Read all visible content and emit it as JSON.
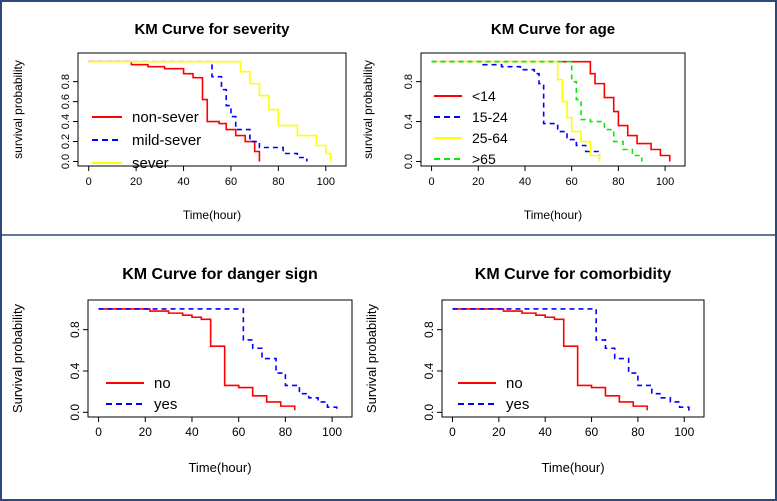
{
  "figure": {
    "colors": {
      "border": "#2b4a7a",
      "red": "#ff0000",
      "blue": "#0000ff",
      "yellow": "#ffff00",
      "green": "#00ee00",
      "axis": "#000000"
    }
  },
  "chart_data": [
    {
      "type": "line",
      "title": "KM Curve for severity",
      "xlabel": "Time(hour)",
      "ylabel": "survival probability",
      "xlim": [
        0,
        100
      ],
      "ylim": [
        0,
        1
      ],
      "xticks": [
        0,
        20,
        40,
        60,
        80,
        100
      ],
      "yticks": [
        "0.0",
        "0.2",
        "0.4",
        "0.6",
        "0.8"
      ],
      "legend_position": "bottom-left",
      "series": [
        {
          "name": "non-sever",
          "color": "#ff0000",
          "dash": "solid",
          "steps": [
            [
              0,
              1.0
            ],
            [
              18,
              0.97
            ],
            [
              25,
              0.95
            ],
            [
              32,
              0.93
            ],
            [
              40,
              0.88
            ],
            [
              44,
              0.84
            ],
            [
              48,
              0.62
            ],
            [
              50,
              0.4
            ],
            [
              55,
              0.38
            ],
            [
              58,
              0.32
            ],
            [
              62,
              0.26
            ],
            [
              66,
              0.2
            ],
            [
              70,
              0.1
            ],
            [
              72,
              0.0
            ]
          ]
        },
        {
          "name": "mild-sever",
          "color": "#0000ff",
          "dash": "dashed",
          "steps": [
            [
              0,
              1.0
            ],
            [
              43,
              1.0
            ],
            [
              52,
              0.85
            ],
            [
              56,
              0.72
            ],
            [
              58,
              0.56
            ],
            [
              60,
              0.45
            ],
            [
              62,
              0.32
            ],
            [
              68,
              0.2
            ],
            [
              72,
              0.14
            ],
            [
              82,
              0.08
            ],
            [
              88,
              0.04
            ],
            [
              92,
              0.0
            ]
          ]
        },
        {
          "name": "sever",
          "color": "#ffff00",
          "dash": "solid",
          "steps": [
            [
              0,
              1.0
            ],
            [
              62,
              1.0
            ],
            [
              64,
              0.9
            ],
            [
              68,
              0.78
            ],
            [
              72,
              0.66
            ],
            [
              76,
              0.52
            ],
            [
              80,
              0.36
            ],
            [
              88,
              0.26
            ],
            [
              96,
              0.16
            ],
            [
              100,
              0.08
            ],
            [
              102,
              0.0
            ]
          ]
        }
      ]
    },
    {
      "type": "line",
      "title": "KM Curve for age",
      "xlabel": "Time(hour)",
      "ylabel": "survival probability",
      "xlim": [
        0,
        100
      ],
      "ylim": [
        0,
        1
      ],
      "xticks": [
        0,
        20,
        40,
        60,
        80,
        100
      ],
      "yticks": [
        "0.0",
        "0.4",
        "0.8"
      ],
      "legend_position": "bottom-left",
      "series": [
        {
          "name": "<14",
          "color": "#ff0000",
          "dash": "solid",
          "steps": [
            [
              0,
              1.0
            ],
            [
              66,
              1.0
            ],
            [
              68,
              0.88
            ],
            [
              70,
              0.78
            ],
            [
              74,
              0.64
            ],
            [
              78,
              0.5
            ],
            [
              80,
              0.36
            ],
            [
              84,
              0.26
            ],
            [
              88,
              0.18
            ],
            [
              94,
              0.12
            ],
            [
              98,
              0.06
            ],
            [
              102,
              0.0
            ]
          ]
        },
        {
          "name": "15-24",
          "color": "#0000ff",
          "dash": "dashed",
          "steps": [
            [
              0,
              1.0
            ],
            [
              22,
              0.97
            ],
            [
              30,
              0.95
            ],
            [
              38,
              0.92
            ],
            [
              44,
              0.88
            ],
            [
              46,
              0.78
            ],
            [
              48,
              0.38
            ],
            [
              54,
              0.3
            ],
            [
              58,
              0.22
            ],
            [
              62,
              0.16
            ],
            [
              66,
              0.1
            ],
            [
              72,
              0.0
            ]
          ]
        },
        {
          "name": "25-64",
          "color": "#ffff00",
          "dash": "solid",
          "steps": [
            [
              0,
              1.0
            ],
            [
              52,
              1.0
            ],
            [
              54,
              0.82
            ],
            [
              56,
              0.6
            ],
            [
              58,
              0.44
            ],
            [
              60,
              0.3
            ],
            [
              64,
              0.2
            ],
            [
              68,
              0.06
            ],
            [
              72,
              0.0
            ]
          ]
        },
        {
          "name": ">65",
          "color": "#00ee00",
          "dash": "dashed",
          "steps": [
            [
              0,
              1.0
            ],
            [
              58,
              1.0
            ],
            [
              60,
              0.8
            ],
            [
              62,
              0.62
            ],
            [
              64,
              0.42
            ],
            [
              68,
              0.4
            ],
            [
              74,
              0.32
            ],
            [
              78,
              0.2
            ],
            [
              82,
              0.12
            ],
            [
              86,
              0.06
            ],
            [
              90,
              0.0
            ]
          ]
        }
      ]
    },
    {
      "type": "line",
      "title": "KM Curve for danger sign",
      "xlabel": "Time(hour)",
      "ylabel": "Survival probability",
      "xlim": [
        0,
        100
      ],
      "ylim": [
        0,
        1
      ],
      "xticks": [
        0,
        20,
        40,
        60,
        80,
        100
      ],
      "yticks": [
        "0.0",
        "0.4",
        "0.8"
      ],
      "legend_position": "bottom-left",
      "series": [
        {
          "name": "no",
          "color": "#ff0000",
          "dash": "solid",
          "steps": [
            [
              0,
              1.0
            ],
            [
              22,
              0.98
            ],
            [
              30,
              0.96
            ],
            [
              36,
              0.94
            ],
            [
              40,
              0.92
            ],
            [
              44,
              0.9
            ],
            [
              48,
              0.64
            ],
            [
              54,
              0.26
            ],
            [
              60,
              0.24
            ],
            [
              66,
              0.16
            ],
            [
              72,
              0.1
            ],
            [
              78,
              0.06
            ],
            [
              84,
              0.02
            ]
          ]
        },
        {
          "name": "yes",
          "color": "#0000ff",
          "dash": "dashed",
          "steps": [
            [
              0,
              1.0
            ],
            [
              58,
              1.0
            ],
            [
              62,
              0.7
            ],
            [
              66,
              0.62
            ],
            [
              70,
              0.52
            ],
            [
              76,
              0.38
            ],
            [
              80,
              0.26
            ],
            [
              86,
              0.18
            ],
            [
              90,
              0.14
            ],
            [
              94,
              0.1
            ],
            [
              98,
              0.05
            ],
            [
              102,
              0.0
            ]
          ]
        }
      ]
    },
    {
      "type": "line",
      "title": "KM Curve for comorbidity",
      "xlabel": "Time(hour)",
      "ylabel": "Survival probability",
      "xlim": [
        0,
        100
      ],
      "ylim": [
        0,
        1
      ],
      "xticks": [
        0,
        20,
        40,
        60,
        80,
        100
      ],
      "yticks": [
        "0.0",
        "0.4",
        "0.8"
      ],
      "legend_position": "bottom-left",
      "series": [
        {
          "name": "no",
          "color": "#ff0000",
          "dash": "solid",
          "steps": [
            [
              0,
              1.0
            ],
            [
              22,
              0.98
            ],
            [
              30,
              0.96
            ],
            [
              36,
              0.94
            ],
            [
              40,
              0.92
            ],
            [
              44,
              0.9
            ],
            [
              48,
              0.64
            ],
            [
              54,
              0.26
            ],
            [
              60,
              0.24
            ],
            [
              66,
              0.16
            ],
            [
              72,
              0.1
            ],
            [
              78,
              0.06
            ],
            [
              84,
              0.02
            ]
          ]
        },
        {
          "name": "yes",
          "color": "#0000ff",
          "dash": "dashed",
          "steps": [
            [
              0,
              1.0
            ],
            [
              58,
              1.0
            ],
            [
              62,
              0.7
            ],
            [
              66,
              0.62
            ],
            [
              70,
              0.52
            ],
            [
              76,
              0.38
            ],
            [
              80,
              0.26
            ],
            [
              86,
              0.18
            ],
            [
              90,
              0.14
            ],
            [
              94,
              0.1
            ],
            [
              98,
              0.05
            ],
            [
              102,
              0.0
            ]
          ]
        }
      ]
    }
  ]
}
